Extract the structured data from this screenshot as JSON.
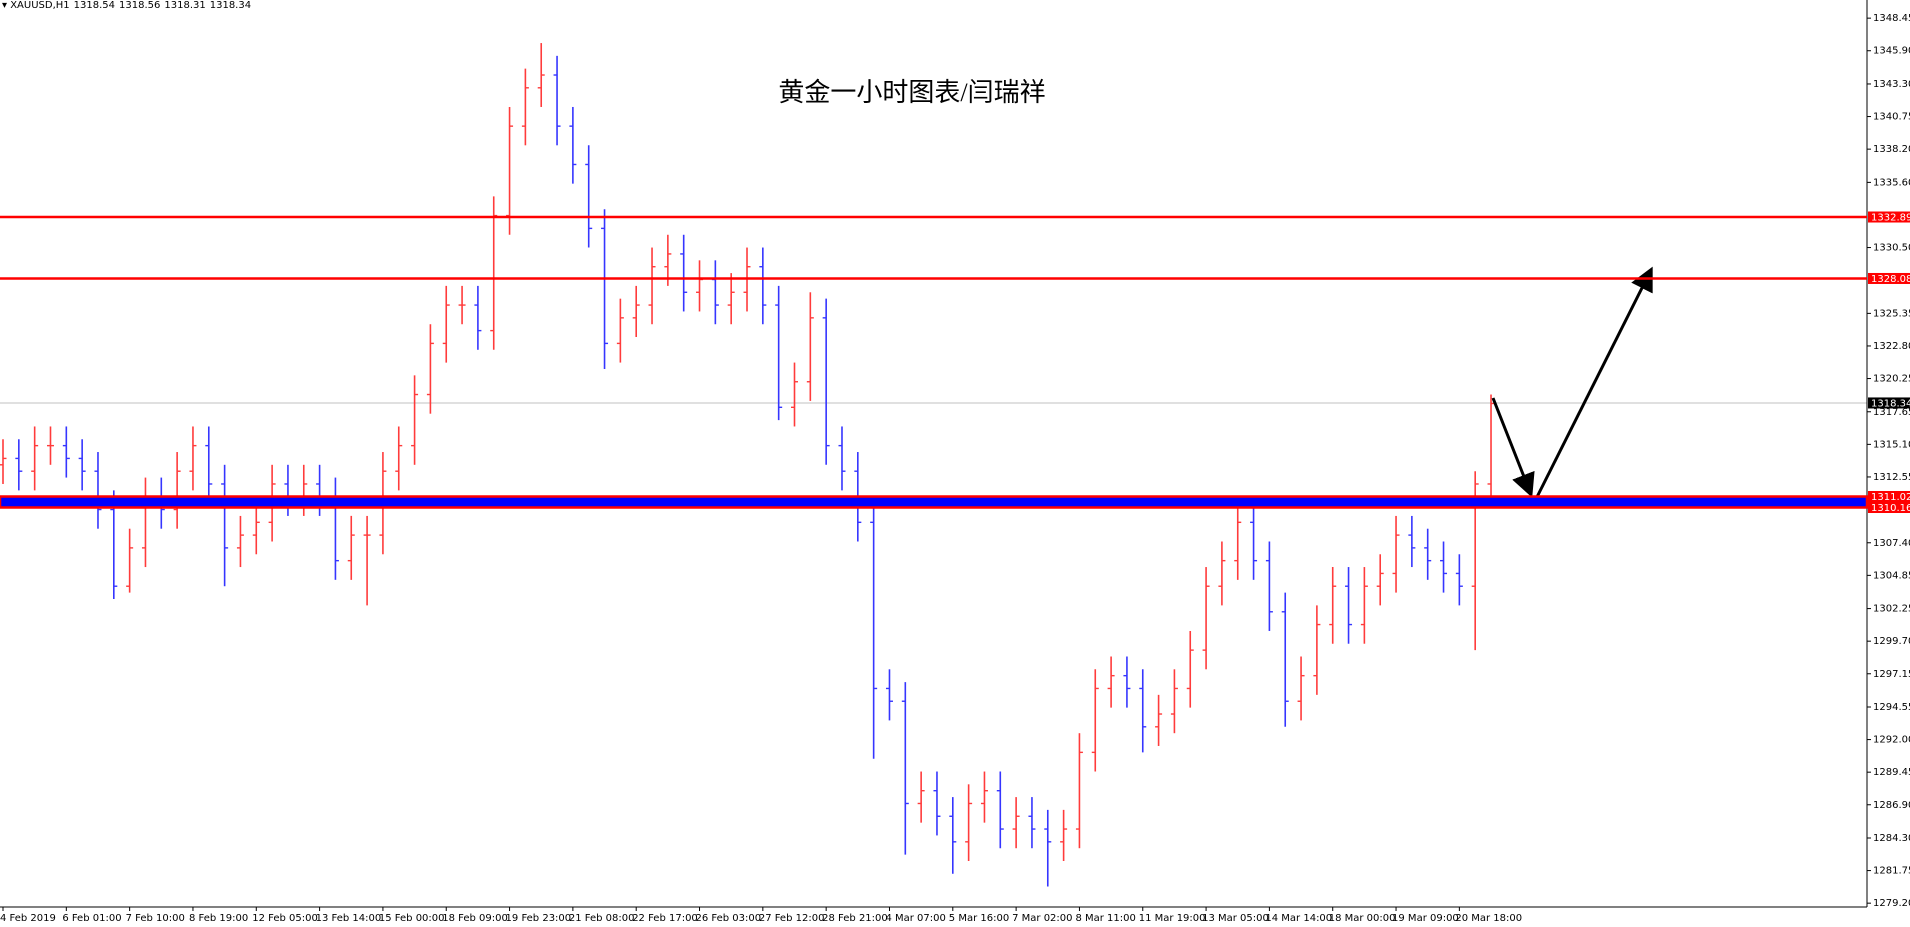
{
  "chart_data": {
    "type": "ohlc",
    "symbol": "XAUUSD,H1",
    "quote": [
      1318.54,
      1318.56,
      1318.31,
      1318.34
    ],
    "title": "黄金一小时图表/闫瑞祥",
    "categories": [
      "4 Feb 2019",
      null,
      null,
      null,
      "6 Feb 01:00",
      null,
      null,
      null,
      "7 Feb 10:00",
      null,
      null,
      null,
      "8 Feb 19:00",
      null,
      null,
      null,
      "12 Feb 05:00",
      null,
      null,
      null,
      "13 Feb 14:00",
      null,
      null,
      null,
      "15 Feb 00:00",
      null,
      null,
      null,
      "18 Feb 09:00",
      null,
      null,
      null,
      "19 Feb 23:00",
      null,
      null,
      null,
      "21 Feb 08:00",
      null,
      null,
      null,
      "22 Feb 17:00",
      null,
      null,
      null,
      "26 Feb 03:00",
      null,
      null,
      null,
      "27 Feb 12:00",
      null,
      null,
      null,
      "28 Feb 21:00",
      null,
      null,
      null,
      "4 Mar 07:00",
      null,
      null,
      null,
      "5 Mar 16:00",
      null,
      null,
      null,
      "7 Mar 02:00",
      null,
      null,
      null,
      "8 Mar 11:00",
      null,
      null,
      null,
      "11 Mar 19:00",
      null,
      null,
      null,
      "13 Mar 05:00",
      null,
      null,
      null,
      "14 Mar 14:00",
      null,
      null,
      null,
      "18 Mar 00:00",
      null,
      null,
      null,
      "19 Mar 09:00",
      null,
      null,
      null,
      "20 Mar 18:00",
      null,
      null
    ],
    "open": [
      1313.5,
      1314,
      1313,
      1315,
      1315,
      1314,
      1313,
      1310,
      1304,
      1307,
      1311,
      1310,
      1313,
      1315,
      1312,
      1307,
      1308,
      1309,
      1312,
      1311,
      1312,
      1311,
      1306,
      1308,
      1308,
      1313,
      1315,
      1319,
      1323,
      1326,
      1326,
      1324,
      1333,
      1340,
      1343,
      1344,
      1340,
      1337,
      1332,
      1323,
      1325,
      1326,
      1329,
      1330,
      1327,
      1328,
      1326,
      1327,
      1329,
      1326,
      1318,
      1320,
      1325,
      1315,
      1313,
      1309,
      1296,
      1295,
      1287,
      1288,
      1286,
      1284,
      1287,
      1288,
      1285,
      1286,
      1285,
      1284,
      1285,
      1291,
      1296,
      1297,
      1296,
      1293,
      1294,
      1296,
      1299,
      1304,
      1306,
      1309,
      1306,
      1302,
      1295,
      1297,
      1301,
      1304,
      1301,
      1304,
      1305,
      1308,
      1307,
      1306,
      1305,
      1304,
      1312
    ],
    "high": [
      1315.5,
      1315.5,
      1316.5,
      1316.5,
      1316.5,
      1315.5,
      1314.5,
      1311.5,
      1308.5,
      1312.5,
      1312.5,
      1314.5,
      1316.5,
      1316.5,
      1313.5,
      1309.5,
      1310.5,
      1313.5,
      1313.5,
      1313.5,
      1313.5,
      1312.5,
      1309.5,
      1309.5,
      1314.5,
      1316.5,
      1320.5,
      1324.5,
      1327.5,
      1327.5,
      1327.5,
      1334.5,
      1341.5,
      1344.5,
      1346.5,
      1345.5,
      1341.5,
      1338.5,
      1333.5,
      1326.5,
      1327.5,
      1330.5,
      1331.5,
      1331.5,
      1329.5,
      1329.5,
      1328.5,
      1330.5,
      1330.5,
      1327.5,
      1321.5,
      1327,
      1326.5,
      1316.5,
      1314.5,
      1310.5,
      1297.5,
      1296.5,
      1289.5,
      1289.5,
      1287.5,
      1288.5,
      1289.5,
      1289.5,
      1287.5,
      1287.5,
      1286.5,
      1286.5,
      1292.5,
      1297.5,
      1298.5,
      1298.5,
      1297.5,
      1295.5,
      1297.5,
      1300.5,
      1305.5,
      1307.5,
      1310.5,
      1310.5,
      1307.5,
      1303.5,
      1298.5,
      1302.5,
      1305.5,
      1305.5,
      1305.5,
      1306.5,
      1309.5,
      1309.5,
      1308.5,
      1307.5,
      1306.5,
      1313,
      1319
    ],
    "low": [
      1312,
      1311.5,
      1311.5,
      1313.5,
      1312.5,
      1311.5,
      1308.5,
      1303,
      1303.5,
      1305.5,
      1308.5,
      1308.5,
      1311.5,
      1310.5,
      1304,
      1305.5,
      1306.5,
      1307.5,
      1309.5,
      1309.5,
      1309.5,
      1304.5,
      1304.5,
      1302.5,
      1306.5,
      1311.5,
      1313.5,
      1317.5,
      1321.5,
      1324.5,
      1322.5,
      1322.5,
      1331.5,
      1338.5,
      1341.5,
      1338.5,
      1335.5,
      1330.5,
      1321,
      1321.5,
      1323.5,
      1324.5,
      1327.5,
      1325.5,
      1325.5,
      1324.5,
      1324.5,
      1325.5,
      1324.5,
      1317,
      1316.5,
      1318.5,
      1313.5,
      1311.5,
      1307.5,
      1290.5,
      1293.5,
      1283,
      1285.5,
      1284.5,
      1281.5,
      1282.5,
      1285.5,
      1283.5,
      1283.5,
      1283.5,
      1280.5,
      1282.5,
      1283.5,
      1289.5,
      1294.5,
      1294.5,
      1291,
      1291.5,
      1292.5,
      1294.5,
      1297.5,
      1302.5,
      1304.5,
      1304.5,
      1300.5,
      1293,
      1293.5,
      1295.5,
      1299.5,
      1299.5,
      1299.5,
      1302.5,
      1303.5,
      1305.5,
      1304.5,
      1303.5,
      1302.5,
      1299,
      1310.5
    ],
    "close": [
      1314,
      1313,
      1315,
      1315,
      1314,
      1313,
      1310,
      1304,
      1307,
      1311,
      1310,
      1313,
      1315,
      1312,
      1307,
      1308,
      1309,
      1312,
      1311,
      1312,
      1311,
      1306,
      1308,
      1308,
      1313,
      1315,
      1319,
      1323,
      1326,
      1326,
      1324,
      1333,
      1340,
      1343,
      1344,
      1340,
      1337,
      1332,
      1323,
      1325,
      1326,
      1329,
      1330,
      1327,
      1328,
      1326,
      1327,
      1329,
      1326,
      1318,
      1320,
      1325,
      1315,
      1313,
      1309,
      1296,
      1295,
      1287,
      1288,
      1286,
      1284,
      1287,
      1288,
      1285,
      1286,
      1285,
      1284,
      1285,
      1291,
      1296,
      1297,
      1296,
      1293,
      1294,
      1296,
      1299,
      1304,
      1306,
      1309,
      1306,
      1302,
      1295,
      1297,
      1301,
      1304,
      1301,
      1304,
      1305,
      1308,
      1307,
      1306,
      1305,
      1304,
      1312,
      1318.3
    ],
    "up_color": "#ff3b3b",
    "down_color": "#3535ff",
    "ylim": [
      1278.9,
      1349.87
    ],
    "yticks": [
      {
        "value": 1348.45,
        "label": "1348.45"
      },
      {
        "value": 1345.9,
        "label": "1345.90"
      },
      {
        "value": 1343.3,
        "label": "1343.30"
      },
      {
        "value": 1340.75,
        "label": "1340.75"
      },
      {
        "value": 1338.2,
        "label": "1338.20"
      },
      {
        "value": 1335.6,
        "label": "1335.60"
      },
      {
        "value": 1330.5,
        "label": "1330.50"
      },
      {
        "value": 1325.35,
        "label": "1325.35"
      },
      {
        "value": 1322.8,
        "label": "1322.80"
      },
      {
        "value": 1320.25,
        "label": "1320.25"
      },
      {
        "value": 1317.65,
        "label": "1317.65"
      },
      {
        "value": 1315.1,
        "label": "1315.10"
      },
      {
        "value": 1312.55,
        "label": "1312.55"
      },
      {
        "value": 1307.4,
        "label": "1307.40"
      },
      {
        "value": 1304.85,
        "label": "1304.85"
      },
      {
        "value": 1302.25,
        "label": "1302.25"
      },
      {
        "value": 1299.7,
        "label": "1299.70"
      },
      {
        "value": 1297.15,
        "label": "1297.15"
      },
      {
        "value": 1294.55,
        "label": "1294.55"
      },
      {
        "value": 1292,
        "label": "1292.00"
      },
      {
        "value": 1289.45,
        "label": "1289.45"
      },
      {
        "value": 1286.9,
        "label": "1286.90"
      },
      {
        "value": 1284.3,
        "label": "1284.30"
      },
      {
        "value": 1281.75,
        "label": "1281.75"
      },
      {
        "value": 1279.2,
        "label": "1279.20"
      }
    ],
    "levels": [
      {
        "value": 1332.89,
        "color": "#ff0000"
      },
      {
        "value": 1328.08,
        "color": "#ff0000"
      }
    ],
    "band": {
      "high": 1311.02,
      "low": 1310.16,
      "fill": "#0000ff",
      "border": "#ff0000"
    },
    "bid": {
      "value": 1318.34,
      "color": "#c0c0c0",
      "label_color": "#000000"
    },
    "grid": false
  }
}
